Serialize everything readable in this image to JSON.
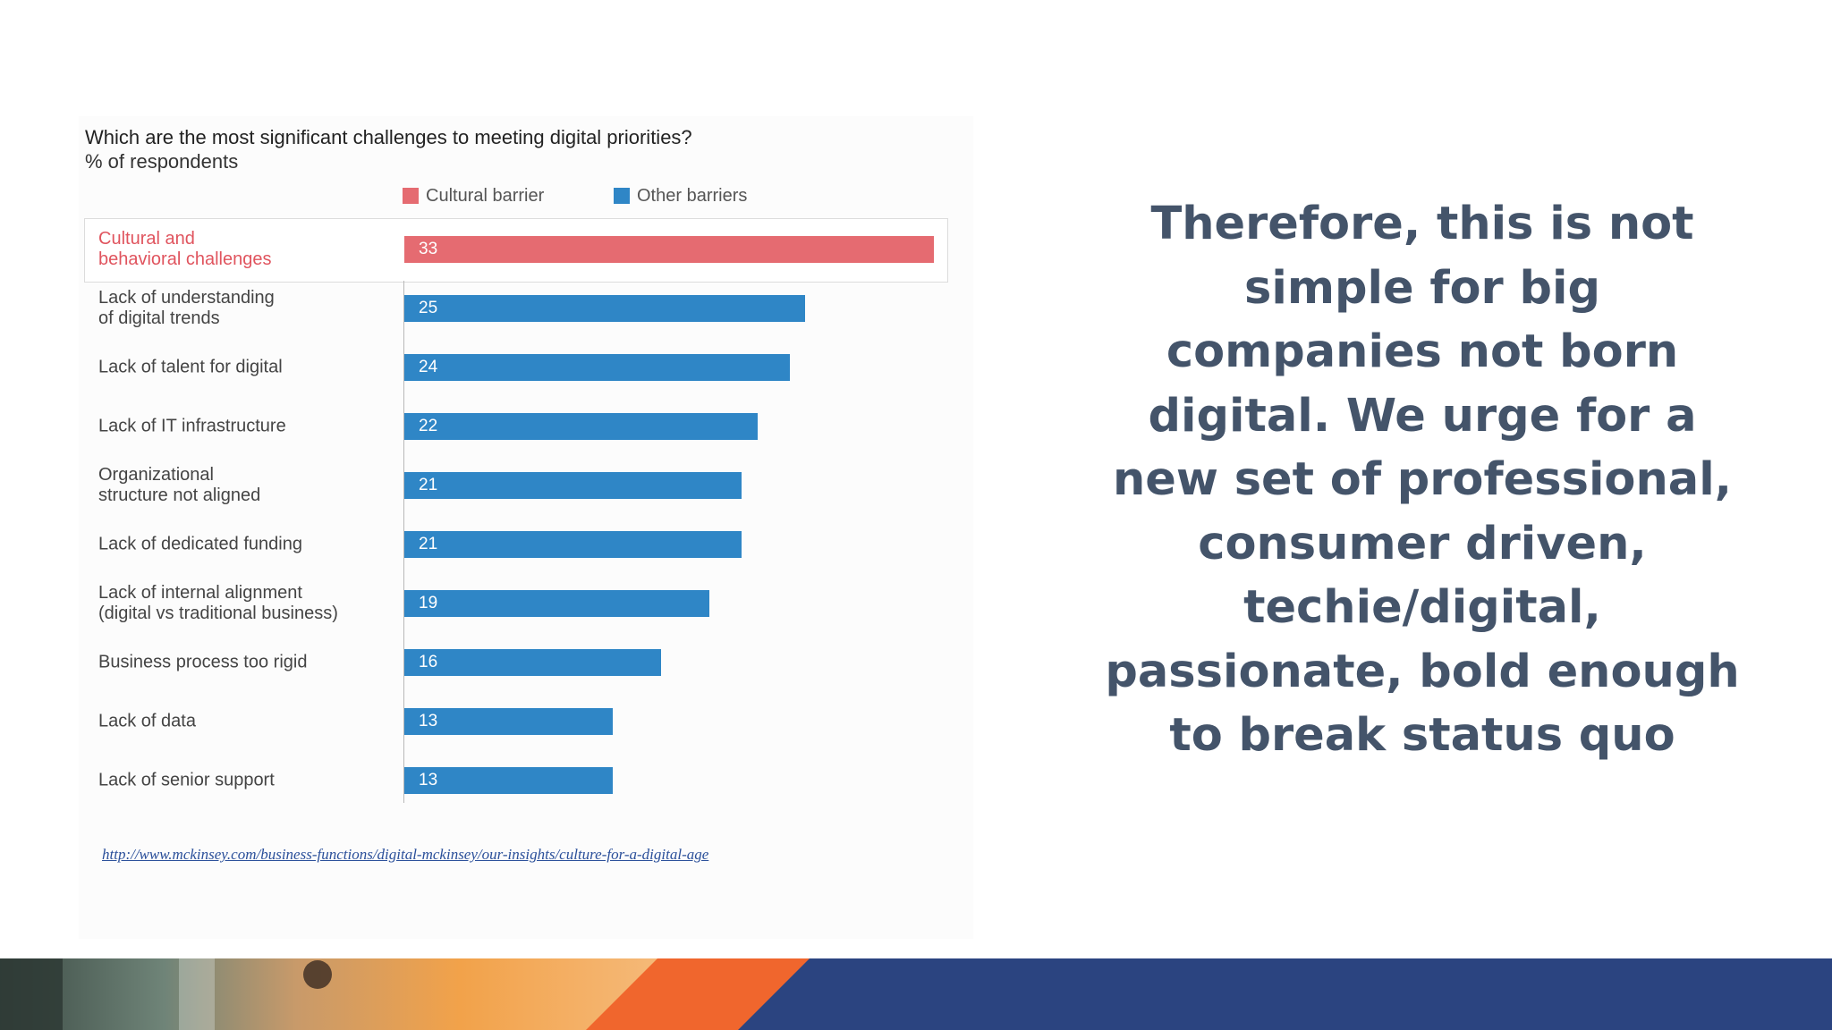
{
  "slide": {
    "message": "Therefore, this is not simple for big companies not born digital. We urge for a new set of professional, consumer driven, techie/digital, passionate, bold enough to break status quo",
    "source_url": "http://www.mckinsey.com/business-functions/digital-mckinsey/our-insights/culture-for-a-digital-age"
  },
  "colors": {
    "cultural": "#e56b71",
    "other": "#2f86c6",
    "text_dark": "#44546a",
    "footer_navy": "#2b4480",
    "footer_orange": "#f0662d"
  },
  "chart_data": {
    "type": "bar",
    "orientation": "horizontal",
    "title": "Which are the most significant challenges to meeting digital priorities?",
    "subtitle": "% of respondents",
    "legend": [
      {
        "label": "Cultural barrier",
        "color": "#e56b71"
      },
      {
        "label": "Other barriers",
        "color": "#2f86c6"
      }
    ],
    "legend_position": "top",
    "grid": false,
    "xlim": [
      0,
      33
    ],
    "categories": [
      "Cultural and\nbehavioral challenges",
      "Lack of understanding\nof digital trends",
      "Lack of talent for digital",
      "Lack of IT infrastructure",
      "Organizational\nstructure not aligned",
      "Lack of dedicated funding",
      "Lack of internal alignment\n(digital vs traditional business)",
      "Business process too rigid",
      "Lack of data",
      "Lack of senior support"
    ],
    "values": [
      33,
      25,
      24,
      22,
      21,
      21,
      19,
      16,
      13,
      13
    ],
    "groups": [
      "Cultural barrier",
      "Other barriers",
      "Other barriers",
      "Other barriers",
      "Other barriers",
      "Other barriers",
      "Other barriers",
      "Other barriers",
      "Other barriers",
      "Other barriers"
    ]
  }
}
